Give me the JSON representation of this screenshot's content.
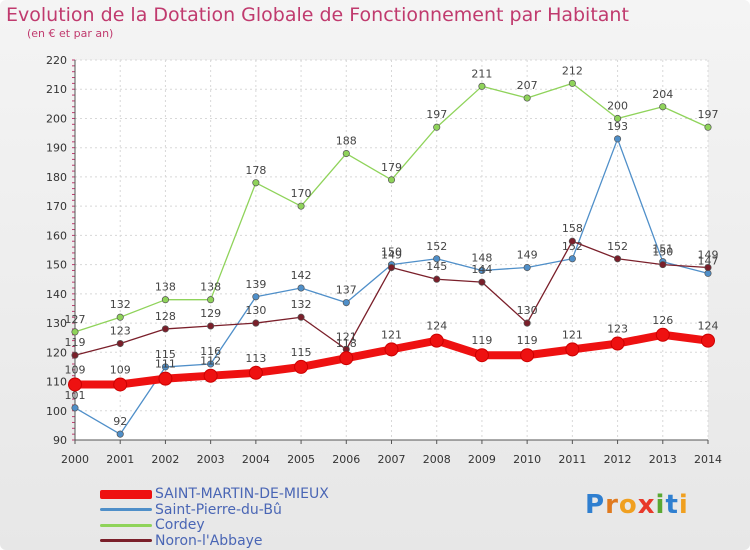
{
  "title": "Evolution de la Dotation Globale de Fonctionnement par Habitant",
  "subtitle": "(en € et par an)",
  "logo": {
    "letters": [
      "P",
      "r",
      "o",
      "x",
      "i",
      "t",
      "i"
    ],
    "colors": [
      "#2f7fd0",
      "#e07a1f",
      "#f0a020",
      "#e8392a",
      "#5aa832",
      "#2f7fd0",
      "#f0a020"
    ]
  },
  "chart_data": {
    "type": "line",
    "title": "Evolution de la Dotation Globale de Fonctionnement par Habitant",
    "subtitle": "(en € et par an)",
    "x": [
      "2000",
      "2001",
      "2002",
      "2003",
      "2004",
      "2005",
      "2006",
      "2007",
      "2008",
      "2009",
      "2010",
      "2011",
      "2012",
      "2013",
      "2014"
    ],
    "ylim": [
      90,
      220
    ],
    "yticks": [
      90,
      100,
      110,
      120,
      130,
      140,
      150,
      160,
      170,
      180,
      190,
      200,
      210,
      220
    ],
    "grid": true,
    "legend_position": "bottom-left",
    "series": [
      {
        "name": "Cordey",
        "color": "#8fd35a",
        "values": [
          127,
          132,
          138,
          138,
          178,
          170,
          188,
          179,
          197,
          211,
          207,
          212,
          200,
          204,
          197
        ]
      },
      {
        "name": "Saint-Pierre-du-Bû",
        "color": "#4f8fc9",
        "values": [
          101,
          92,
          115,
          116,
          139,
          142,
          137,
          150,
          152,
          148,
          149,
          152,
          193,
          151,
          147
        ]
      },
      {
        "name": "Noron-l'Abbaye",
        "color": "#7a1f2a",
        "values": [
          119,
          123,
          128,
          129,
          130,
          132,
          121,
          149,
          145,
          144,
          130,
          158,
          152,
          150,
          149
        ]
      },
      {
        "name": "SAINT-MARTIN-DE-MIEUX",
        "color": "#ee1111",
        "values": [
          109,
          109,
          111,
          112,
          113,
          115,
          118,
          121,
          124,
          119,
          119,
          121,
          123,
          126,
          124
        ]
      }
    ],
    "legend": [
      {
        "name": "SAINT-MARTIN-DE-MIEUX",
        "color": "#ee1111"
      },
      {
        "name": "Saint-Pierre-du-Bû",
        "color": "#4f8fc9"
      },
      {
        "name": "Cordey",
        "color": "#8fd35a"
      },
      {
        "name": "Noron-l'Abbaye",
        "color": "#7a1f2a"
      }
    ]
  }
}
